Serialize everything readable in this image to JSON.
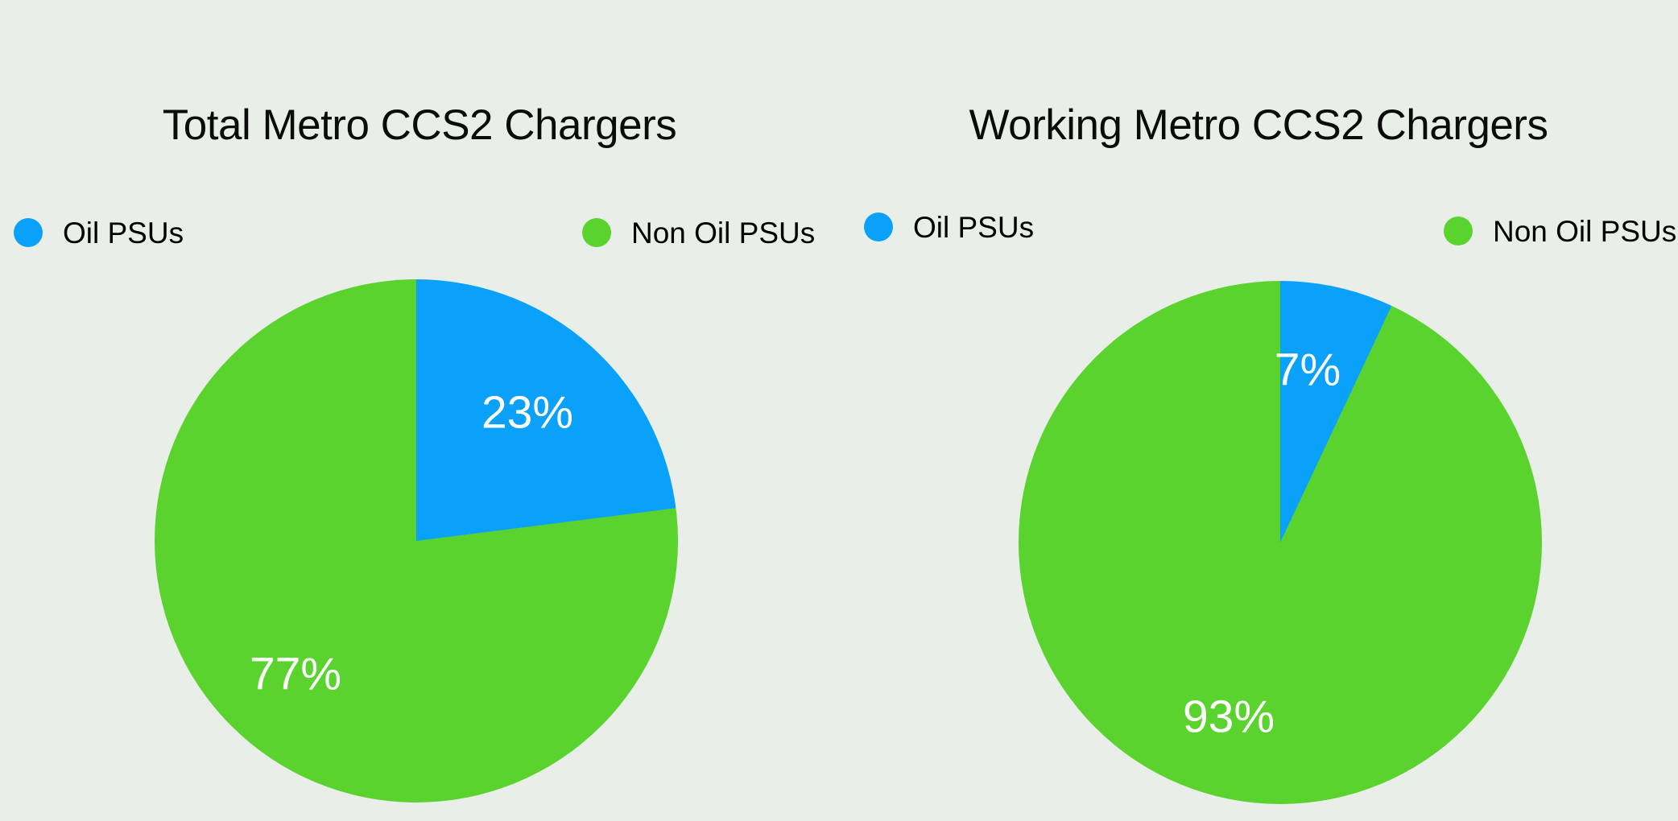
{
  "page": {
    "background_color": "#e9efe8"
  },
  "chart_data": [
    {
      "type": "pie",
      "title": "Total Metro CCS2 Chargers",
      "categories": [
        "Oil PSUs",
        "Non Oil PSUs"
      ],
      "values": [
        23,
        77
      ],
      "data_labels": [
        "23%",
        "77%"
      ],
      "colors": [
        "#0aa1fa",
        "#5bd32e"
      ],
      "label_color": "#ffffff",
      "legend_position": "top",
      "start_angle_deg": 0,
      "direction": "clockwise"
    },
    {
      "type": "pie",
      "title": "Working Metro CCS2 Chargers",
      "categories": [
        "Oil PSUs",
        "Non Oil PSUs"
      ],
      "values": [
        7,
        93
      ],
      "data_labels": [
        "7%",
        "93%"
      ],
      "colors": [
        "#0aa1fa",
        "#5bd32e"
      ],
      "label_color": "#ffffff",
      "legend_position": "top",
      "start_angle_deg": 0,
      "direction": "clockwise"
    }
  ]
}
